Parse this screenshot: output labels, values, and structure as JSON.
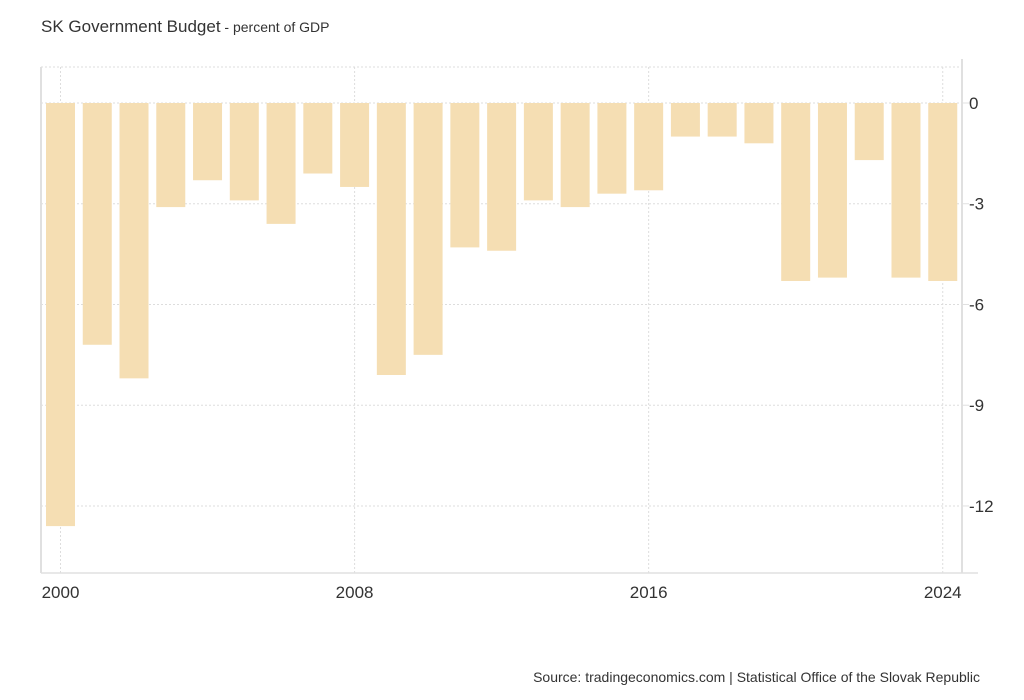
{
  "header": {
    "title": "SK Government Budget",
    "subtitle": " - percent of GDP"
  },
  "footer": {
    "source": "Source: tradingeconomics.com | Statistical Office of the Slovak Republic"
  },
  "colors": {
    "bar": "#F5DEB3",
    "grid": "#dddddd",
    "axis": "#e0e0e0",
    "text": "#333333"
  },
  "chart_data": {
    "type": "bar",
    "title": "SK Government Budget - percent of GDP",
    "xlabel": "",
    "ylabel": "",
    "categories": [
      "2000",
      "2001",
      "2002",
      "2003",
      "2004",
      "2005",
      "2006",
      "2007",
      "2008",
      "2009",
      "2010",
      "2011",
      "2012",
      "2013",
      "2014",
      "2015",
      "2016",
      "2017",
      "2018",
      "2019",
      "2020",
      "2021",
      "2022",
      "2023",
      "2024"
    ],
    "values": [
      -12.6,
      -7.2,
      -8.2,
      -3.1,
      -2.3,
      -2.9,
      -3.6,
      -2.1,
      -2.5,
      -8.1,
      -7.5,
      -4.3,
      -4.4,
      -2.9,
      -3.1,
      -2.7,
      -2.6,
      -1.0,
      -1.0,
      -1.2,
      -5.3,
      -5.2,
      -1.7,
      -5.2,
      -5.3
    ],
    "ylim": [
      -13.9,
      1.1
    ],
    "yticks": [
      0,
      -3,
      -6,
      -9,
      -12
    ],
    "ytick_labels": [
      "0",
      "-3",
      "-6",
      "-9",
      "-12"
    ],
    "xticks": [
      "2000",
      "2008",
      "2016",
      "2024"
    ],
    "y_axis_position": "right",
    "grid": true,
    "legend": "none",
    "source": "Source: tradingeconomics.com | Statistical Office of the Slovak Republic"
  }
}
